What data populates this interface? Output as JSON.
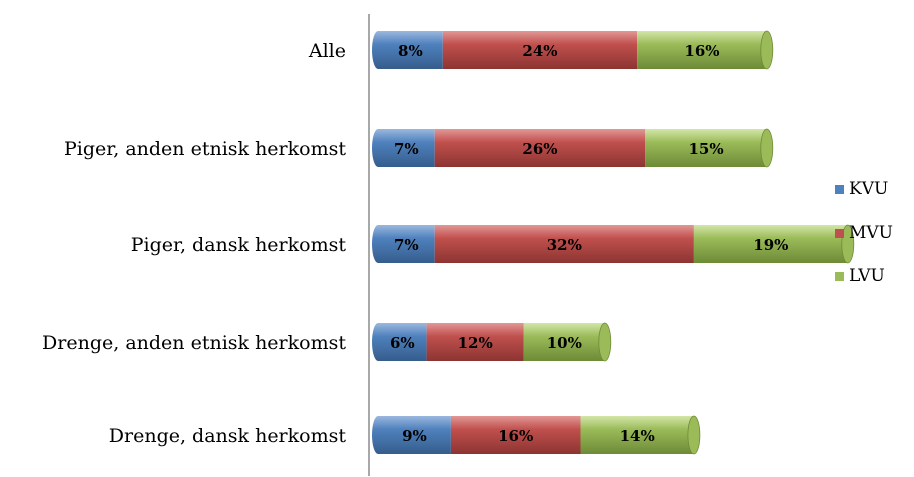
{
  "chart_data": {
    "type": "bar",
    "orientation": "horizontal",
    "stacked": true,
    "style": "3d-cylinder",
    "title": "",
    "xlabel": "",
    "ylabel": "",
    "categories": [
      "Alle",
      "Piger, anden etnisk herkomst",
      "Piger, dansk herkomst",
      "Drenge, anden etnisk herkomst",
      "Drenge, dansk herkomst"
    ],
    "series": [
      {
        "name": "KVU",
        "color": "#4f81bd",
        "values": [
          8,
          7,
          7,
          6,
          9
        ],
        "labels": [
          "8%",
          "7%",
          "7%",
          "6%",
          "9%"
        ]
      },
      {
        "name": "MVU",
        "color": "#c0504d",
        "values": [
          24,
          26,
          32,
          12,
          16
        ],
        "labels": [
          "24%",
          "26%",
          "32%",
          "12%",
          "16%"
        ]
      },
      {
        "name": "LVU",
        "color": "#9bbb59",
        "values": [
          16,
          15,
          19,
          10,
          14
        ],
        "labels": [
          "16%",
          "15%",
          "19%",
          "10%",
          "14%"
        ]
      }
    ],
    "xlim": [
      0,
      60
    ],
    "grid": false,
    "legend_position": "right"
  }
}
